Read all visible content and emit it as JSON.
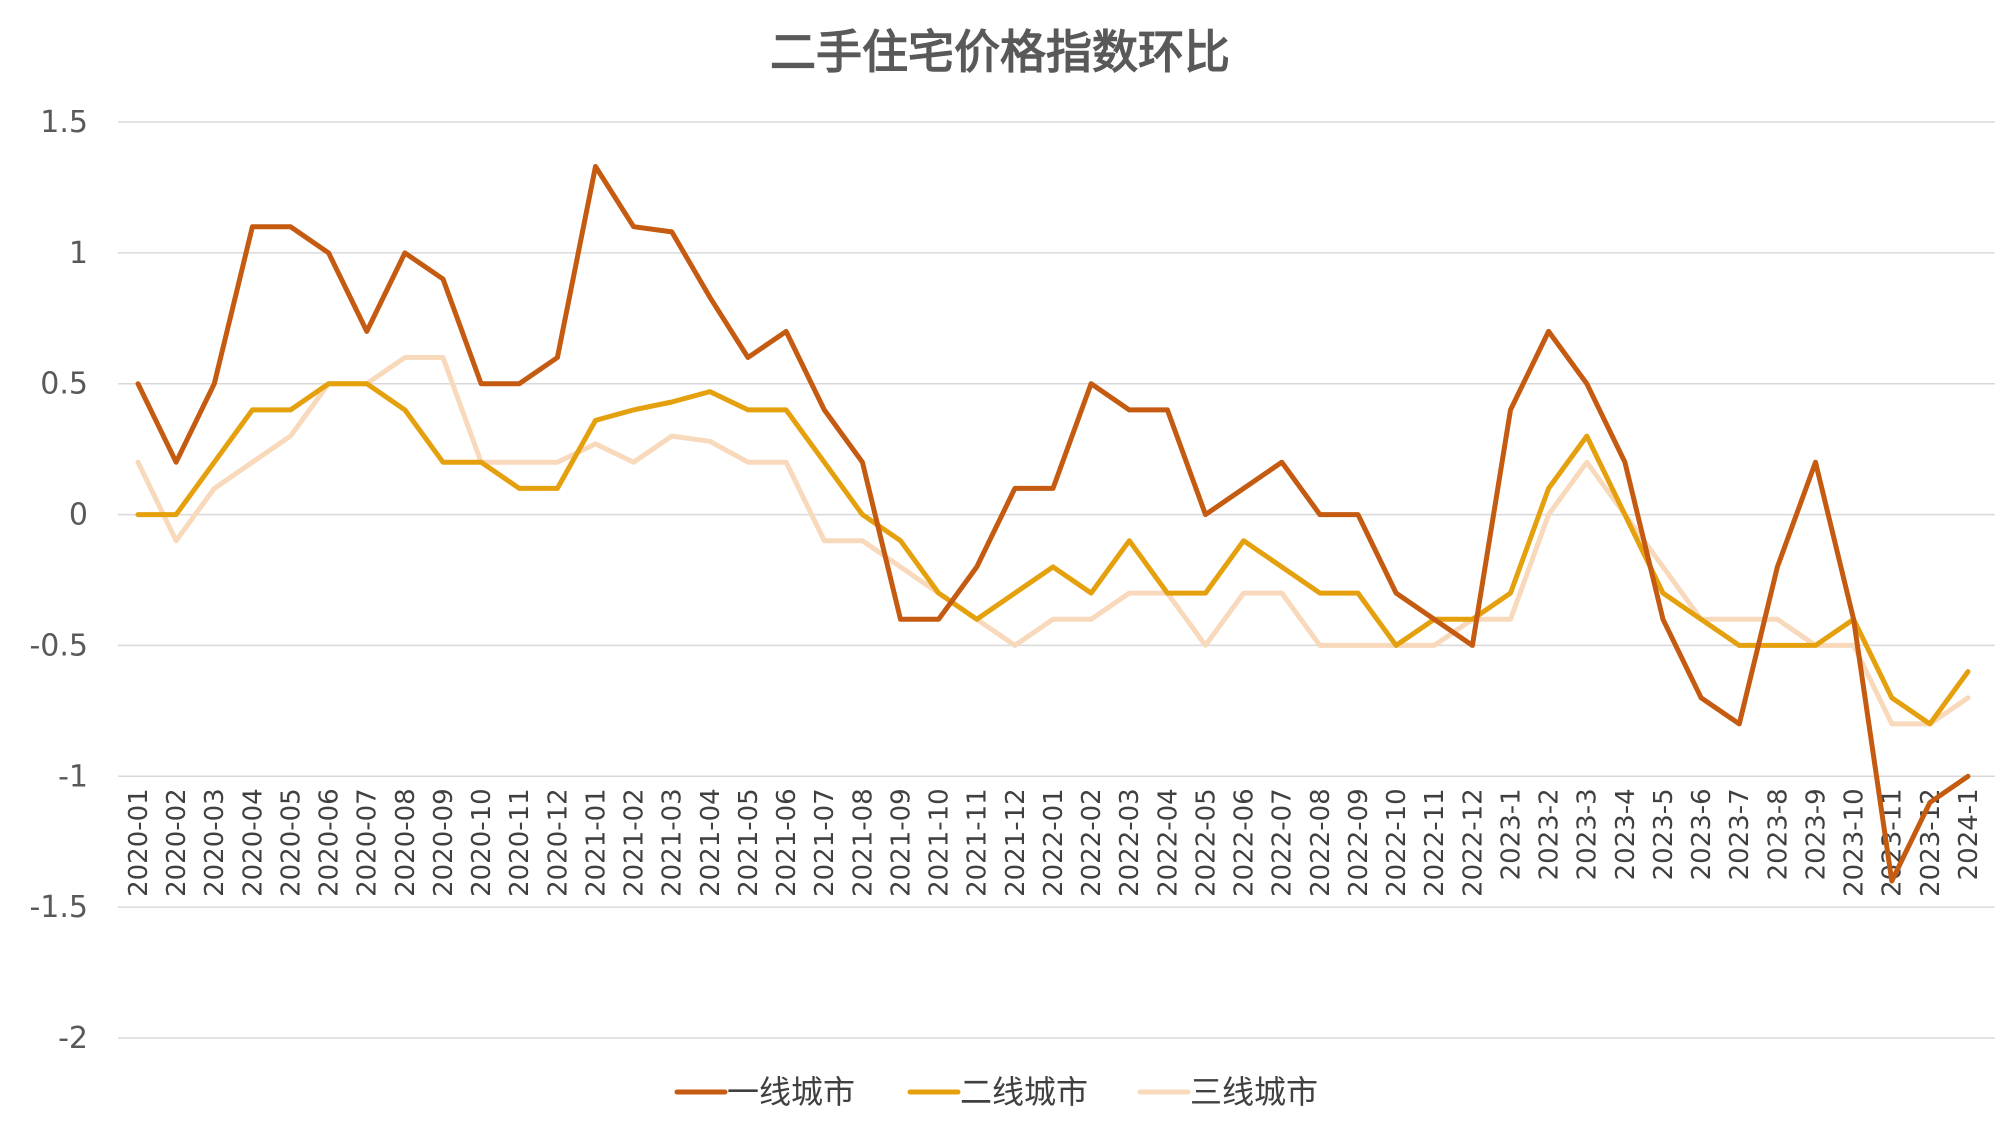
{
  "chart_data": {
    "type": "line",
    "title": "二手住宅价格指数环比",
    "xlabel": "",
    "ylabel": "",
    "ylim": [
      -2,
      1.5
    ],
    "y_ticks": [
      1.5,
      1,
      0.5,
      0,
      -0.5,
      -1,
      -1.5,
      -2
    ],
    "y_tick_labels": [
      "1.5",
      "1",
      "0.5",
      "0",
      "-0.5",
      "-1",
      "-1.5",
      "-2"
    ],
    "grid": true,
    "legend_position": "bottom",
    "categories": [
      "2020-01",
      "2020-02",
      "2020-03",
      "2020-04",
      "2020-05",
      "2020-06",
      "2020-07",
      "2020-08",
      "2020-09",
      "2020-10",
      "2020-11",
      "2020-12",
      "2021-01",
      "2021-02",
      "2021-03",
      "2021-04",
      "2021-05",
      "2021-06",
      "2021-07",
      "2021-08",
      "2021-09",
      "2021-10",
      "2021-11",
      "2021-12",
      "2022-01",
      "2022-02",
      "2022-03",
      "2022-04",
      "2022-05",
      "2022-06",
      "2022-07",
      "2022-08",
      "2022-09",
      "2022-10",
      "2022-11",
      "2022-12",
      "2023-1",
      "2023-2",
      "2023-3",
      "2023-4",
      "2023-5",
      "2023-6",
      "2023-7",
      "2023-8",
      "2023-9",
      "2023-10",
      "2023-11",
      "2023-12",
      "2024-1"
    ],
    "series": [
      {
        "name": "一线城市",
        "color": "#c55a11",
        "values": [
          0.5,
          0.2,
          0.5,
          1.1,
          1.1,
          1.0,
          0.7,
          1.0,
          0.9,
          0.5,
          0.5,
          0.6,
          1.33,
          1.1,
          1.08,
          0.83,
          0.6,
          0.7,
          0.4,
          0.2,
          -0.4,
          -0.4,
          -0.2,
          0.1,
          0.1,
          0.5,
          0.4,
          0.4,
          0.0,
          0.1,
          0.2,
          0.0,
          0.0,
          -0.3,
          -0.4,
          -0.5,
          0.4,
          0.7,
          0.5,
          0.2,
          -0.4,
          -0.7,
          -0.8,
          -0.2,
          0.2,
          -0.4,
          -1.4,
          -1.1,
          -1.0
        ]
      },
      {
        "name": "二线城市",
        "color": "#e5a00d",
        "values": [
          0.0,
          0.0,
          0.2,
          0.4,
          0.4,
          0.5,
          0.5,
          0.4,
          0.2,
          0.2,
          0.1,
          0.1,
          0.36,
          0.4,
          0.43,
          0.47,
          0.4,
          0.4,
          0.2,
          0.0,
          -0.1,
          -0.3,
          -0.4,
          -0.3,
          -0.2,
          -0.3,
          -0.1,
          -0.3,
          -0.3,
          -0.1,
          -0.2,
          -0.3,
          -0.3,
          -0.5,
          -0.4,
          -0.4,
          -0.3,
          0.1,
          0.3,
          0.0,
          -0.3,
          -0.4,
          -0.5,
          -0.5,
          -0.5,
          -0.4,
          -0.7,
          -0.8,
          -0.6
        ]
      },
      {
        "name": "三线城市",
        "color": "#f8d9bc",
        "values": [
          0.2,
          -0.1,
          0.1,
          0.2,
          0.3,
          0.5,
          0.5,
          0.6,
          0.6,
          0.2,
          0.2,
          0.2,
          0.27,
          0.2,
          0.3,
          0.28,
          0.2,
          0.2,
          -0.1,
          -0.1,
          -0.2,
          -0.3,
          -0.4,
          -0.5,
          -0.4,
          -0.4,
          -0.3,
          -0.3,
          -0.5,
          -0.3,
          -0.3,
          -0.5,
          -0.5,
          -0.5,
          -0.5,
          -0.4,
          -0.4,
          0.0,
          0.2,
          0.0,
          -0.2,
          -0.4,
          -0.4,
          -0.4,
          -0.5,
          -0.5,
          -0.8,
          -0.8,
          -0.7
        ]
      }
    ]
  }
}
